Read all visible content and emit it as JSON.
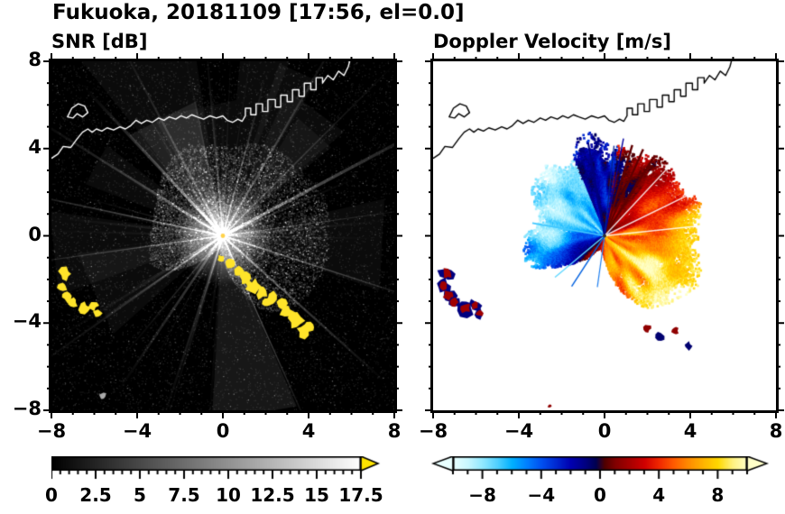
{
  "title": "Fukuoka, 20181109 [17:56, el=0.0]",
  "meta": {
    "station": "Fukuoka",
    "date": "20181109",
    "time": "17:56",
    "elevation": "0.0"
  },
  "left_panel": {
    "title": "SNR [dB]"
  },
  "right_panel": {
    "title": "Doppler Velocity [m/s]"
  },
  "axes": {
    "xlim": [
      -8,
      8
    ],
    "ylim": [
      -8,
      8
    ],
    "xticks": [
      -8,
      -4,
      0,
      4,
      8
    ],
    "xtick_labels": [
      "−8",
      "−4",
      "0",
      "4",
      "8"
    ],
    "yticks": [
      8,
      4,
      0,
      -4,
      -8
    ],
    "ytick_labels": [
      "8",
      "4",
      "0",
      "−4",
      "−8"
    ],
    "minor_step": 1
  },
  "snr_colorbar": {
    "range": [
      0,
      17.5
    ],
    "minor_step": 0.5,
    "ticks": [
      0,
      2.5,
      5,
      7.5,
      10,
      12.5,
      15,
      17.5
    ],
    "tick_labels": [
      "0",
      "2.5",
      "5",
      "7.5",
      "10",
      "12.5",
      "15",
      "17.5"
    ],
    "over_arrow_color": "#ffe400"
  },
  "vel_colorbar": {
    "range": [
      -10,
      10
    ],
    "minor_step": 1,
    "ticks": [
      -8,
      -4,
      0,
      4,
      8
    ],
    "tick_labels": [
      "−8",
      "−4",
      "0",
      "4",
      "8"
    ]
  },
  "map": {
    "coastline": [
      [
        -8,
        3.55
      ],
      [
        -7.7,
        3.75
      ],
      [
        -7.45,
        4.1
      ],
      [
        -7.1,
        4.05
      ],
      [
        -6.8,
        4.45
      ],
      [
        -6.55,
        4.75
      ],
      [
        -6.3,
        4.9
      ],
      [
        -6.1,
        4.75
      ],
      [
        -5.9,
        4.9
      ],
      [
        -5.65,
        4.8
      ],
      [
        -5.4,
        4.95
      ],
      [
        -5.1,
        4.85
      ],
      [
        -4.8,
        5.0
      ],
      [
        -4.55,
        4.9
      ],
      [
        -4.3,
        5.05
      ],
      [
        -4.05,
        5.3
      ],
      [
        -3.8,
        5.15
      ],
      [
        -3.55,
        5.3
      ],
      [
        -3.3,
        5.2
      ],
      [
        -3.0,
        5.4
      ],
      [
        -2.75,
        5.3
      ],
      [
        -2.5,
        5.45
      ],
      [
        -2.2,
        5.35
      ],
      [
        -1.95,
        5.5
      ],
      [
        -1.7,
        5.4
      ],
      [
        -1.45,
        5.55
      ],
      [
        -1.2,
        5.45
      ],
      [
        -0.9,
        5.35
      ],
      [
        -0.6,
        5.5
      ],
      [
        -0.3,
        5.4
      ],
      [
        0,
        5.5
      ],
      [
        0.2,
        5.3
      ],
      [
        0.45,
        5.2
      ],
      [
        0.7,
        5.35
      ],
      [
        0.9,
        5.25
      ],
      [
        1.05,
        5.5
      ],
      [
        1.05,
        5.85
      ],
      [
        1.3,
        5.85
      ],
      [
        1.3,
        5.55
      ],
      [
        1.55,
        5.55
      ],
      [
        1.55,
        6.05
      ],
      [
        1.85,
        6.05
      ],
      [
        1.85,
        5.7
      ],
      [
        2.1,
        5.7
      ],
      [
        2.1,
        6.25
      ],
      [
        2.45,
        6.25
      ],
      [
        2.45,
        5.9
      ],
      [
        2.7,
        5.9
      ],
      [
        2.7,
        6.45
      ],
      [
        3.0,
        6.45
      ],
      [
        3.0,
        6.15
      ],
      [
        3.25,
        6.15
      ],
      [
        3.25,
        6.7
      ],
      [
        3.55,
        6.7
      ],
      [
        3.55,
        6.4
      ],
      [
        3.8,
        6.4
      ],
      [
        3.8,
        7.0
      ],
      [
        4.1,
        7.0
      ],
      [
        4.1,
        6.7
      ],
      [
        4.35,
        6.7
      ],
      [
        4.35,
        7.25
      ],
      [
        4.65,
        7.25
      ],
      [
        4.65,
        7.0
      ],
      [
        4.9,
        7.35
      ],
      [
        5.15,
        7.15
      ],
      [
        5.4,
        7.55
      ],
      [
        5.65,
        7.35
      ],
      [
        5.85,
        7.75
      ],
      [
        6.0,
        8.3
      ]
    ],
    "island": [
      [
        -7.25,
        5.45
      ],
      [
        -7.05,
        5.85
      ],
      [
        -6.75,
        6.05
      ],
      [
        -6.45,
        5.95
      ],
      [
        -6.3,
        5.65
      ],
      [
        -6.55,
        5.45
      ],
      [
        -6.8,
        5.6
      ],
      [
        -7.0,
        5.4
      ]
    ]
  },
  "chart_data": [
    {
      "type": "heatmap",
      "title": "SNR [dB]",
      "units": "dB",
      "xlim": [
        -8,
        8
      ],
      "ylim": [
        -8,
        8
      ],
      "colorbar_range": [
        0,
        17.5
      ],
      "colormap": "grayscale 0=black to 17.5=white, above 17.5 yellow",
      "radar_center": [
        0,
        0
      ],
      "spokes_deg": [
        8,
        28,
        45,
        60,
        75,
        95,
        118,
        133,
        148,
        168,
        188,
        215,
        236,
        252,
        294,
        318,
        342
      ],
      "high_snr_regions": [
        [
          -7.35,
          -1.75,
          0.28
        ],
        [
          -7.5,
          -2.3,
          0.22
        ],
        [
          -7.3,
          -2.75,
          0.26
        ],
        [
          -7.0,
          -3.05,
          0.22
        ],
        [
          -6.5,
          -3.3,
          0.28
        ],
        [
          -6.05,
          -3.2,
          0.2
        ],
        [
          -5.85,
          -3.55,
          0.18
        ],
        [
          0.35,
          -1.25,
          0.22
        ],
        [
          0.7,
          -1.6,
          0.26
        ],
        [
          1.05,
          -1.95,
          0.28
        ],
        [
          1.45,
          -2.3,
          0.3
        ],
        [
          1.85,
          -2.6,
          0.3
        ],
        [
          2.3,
          -2.9,
          0.28
        ],
        [
          2.7,
          -3.1,
          0.26
        ],
        [
          3.0,
          -3.5,
          0.3
        ],
        [
          3.4,
          -3.9,
          0.32
        ],
        [
          3.75,
          -4.35,
          0.3
        ],
        [
          4.05,
          -4.2,
          0.2
        ],
        [
          2.05,
          -3.05,
          0.18
        ],
        [
          1.2,
          -2.2,
          0.15
        ],
        [
          -0.1,
          -1.05,
          0.14
        ]
      ],
      "ground_clutter_blob": [
        -5.6,
        -7.35,
        0.16
      ]
    },
    {
      "type": "heatmap",
      "title": "Doppler Velocity [m/s]",
      "units": "m/s",
      "xlim": [
        -8,
        8
      ],
      "ylim": [
        -8,
        8
      ],
      "colorbar_range": [
        -10,
        10
      ],
      "echo_envelope": [
        [
          0,
          4.7
        ],
        [
          15,
          4.8
        ],
        [
          30,
          4.7
        ],
        [
          45,
          4.5
        ],
        [
          60,
          4.5
        ],
        [
          75,
          4.2
        ],
        [
          85,
          3.9
        ],
        [
          95,
          4.0
        ],
        [
          110,
          4.3
        ],
        [
          125,
          4.1
        ],
        [
          140,
          3.7
        ],
        [
          155,
          3.3
        ],
        [
          170,
          3.2
        ],
        [
          185,
          3.3
        ],
        [
          200,
          3.5
        ],
        [
          210,
          3.0
        ],
        [
          225,
          1.6
        ],
        [
          240,
          0.7
        ],
        [
          255,
          0.5
        ],
        [
          270,
          0.9
        ],
        [
          285,
          2.2
        ],
        [
          300,
          3.8
        ],
        [
          315,
          4.4
        ],
        [
          330,
          4.6
        ],
        [
          345,
          4.7
        ],
        [
          360,
          4.7
        ]
      ],
      "velocity_model": {
        "amplitude": 7.5,
        "max_positive_azimuth_deg": -35,
        "noise": 2.5
      },
      "sector_overrides": [
        {
          "from": 82,
          "to": 112,
          "base": -1.6,
          "jitter": 2.2
        },
        {
          "from": 52,
          "to": 81,
          "base": 1.3,
          "jitter": 2.6
        }
      ],
      "artifact_rays": [
        {
          "deg": 79,
          "len": 4.6,
          "color": "#0000a0",
          "w": 1.4
        },
        {
          "deg": 84,
          "len": 4.2,
          "color": "#002090",
          "w": 1.2
        },
        {
          "deg": 100,
          "len": 4.4,
          "color": "#000080",
          "w": 2.0
        },
        {
          "deg": 170,
          "len": 3.4,
          "color": "#40c8ff",
          "w": 1.6
        },
        {
          "deg": 220,
          "len": 3.0,
          "color": "#60d8ff",
          "w": 1.4
        },
        {
          "deg": 237,
          "len": 2.8,
          "color": "#0060e0",
          "w": 1.4
        },
        {
          "deg": 262,
          "len": 2.4,
          "color": "#2080f0",
          "w": 1.2
        }
      ],
      "white_gap_rays_deg": [
        6,
        26,
        47
      ],
      "dark_red_rays_deg": [
        58,
        66,
        73
      ],
      "patches": [
        [
          -7.35,
          -1.75,
          0.28
        ],
        [
          -7.5,
          -2.3,
          0.22
        ],
        [
          -7.3,
          -2.75,
          0.26
        ],
        [
          -7.0,
          -3.05,
          0.22
        ],
        [
          -6.5,
          -3.3,
          0.28
        ],
        [
          -6.05,
          -3.2,
          0.2
        ],
        [
          -5.85,
          -3.55,
          0.18
        ]
      ],
      "small_marks": [
        [
          2.0,
          -4.25,
          0.16
        ],
        [
          2.6,
          -4.6,
          0.18
        ],
        [
          3.3,
          -4.35,
          0.14
        ],
        [
          3.9,
          -5.05,
          0.16
        ],
        [
          -2.55,
          -7.8,
          0.1
        ]
      ],
      "colormap_stops": [
        [
          -10,
          "#e8ffff"
        ],
        [
          -9,
          "#c8f8ff"
        ],
        [
          -8,
          "#90e8ff"
        ],
        [
          -7,
          "#50d0ff"
        ],
        [
          -6,
          "#00b0ff"
        ],
        [
          -5,
          "#0080ff"
        ],
        [
          -4,
          "#0050f0"
        ],
        [
          -3,
          "#0028d0"
        ],
        [
          -2,
          "#0000b0"
        ],
        [
          -1,
          "#000080"
        ],
        [
          -0.3,
          "#000050"
        ],
        [
          0.3,
          "#500000"
        ],
        [
          1,
          "#800000"
        ],
        [
          2,
          "#a80000"
        ],
        [
          3,
          "#d00000"
        ],
        [
          4,
          "#f02800"
        ],
        [
          5,
          "#ff5c00"
        ],
        [
          6,
          "#ff8c00"
        ],
        [
          7,
          "#ffb400"
        ],
        [
          8,
          "#ffd800"
        ],
        [
          9,
          "#fff280"
        ],
        [
          10,
          "#ffffc8"
        ]
      ]
    }
  ]
}
